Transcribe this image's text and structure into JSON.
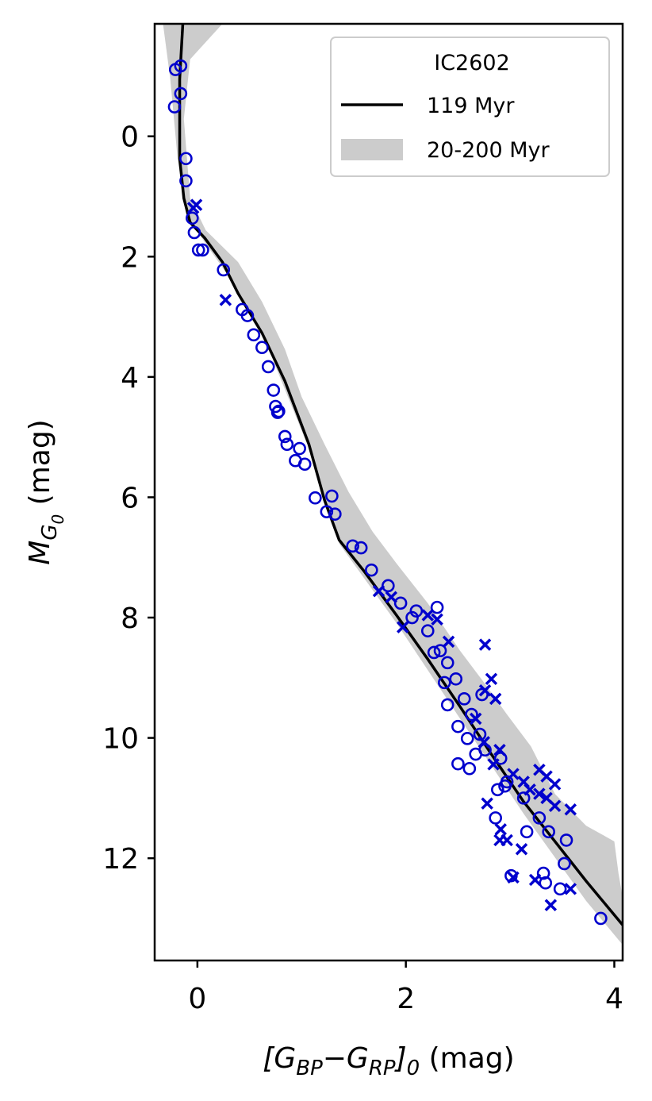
{
  "chart_data": {
    "type": "scatter",
    "xlabel": [
      "[G",
      "BP",
      "−G",
      "RP",
      "]",
      "0",
      " (mag)"
    ],
    "xlabel_levels": [
      0,
      1,
      0,
      1,
      0,
      1,
      0
    ],
    "ylabel": [
      "M",
      "G",
      "0",
      " (mag)"
    ],
    "ylabel_levels": [
      0,
      1,
      2,
      0
    ],
    "xlim": [
      -0.41,
      4.08
    ],
    "ylim": [
      -1.87,
      13.7
    ],
    "y_inverted": true,
    "xticks": [
      0,
      2,
      4
    ],
    "yticks": [
      0,
      2,
      4,
      6,
      8,
      10,
      12
    ],
    "grid": false,
    "legend_title": "IC2602",
    "legend_position": "upper right",
    "band": {
      "name": "20-200 Myr",
      "color": "#cccccc",
      "x": [
        0.24,
        -0.07,
        -0.13,
        -0.07,
        0.08,
        0.39,
        0.62,
        0.84,
        1.0,
        1.22,
        1.45,
        1.68,
        1.91,
        2.21,
        2.52,
        2.75,
        2.97,
        3.2,
        3.43,
        3.73,
        4.0,
        4.04,
        4.08,
        4.08,
        3.73,
        3.13,
        2.52,
        1.91,
        1.36,
        1.07,
        0.62,
        0.31,
        0.07,
        -0.11,
        -0.19,
        -0.26,
        -0.33
      ],
      "y": [
        -1.87,
        -1.28,
        -0.29,
        1.03,
        1.56,
        2.09,
        2.75,
        3.54,
        4.33,
        5.12,
        5.91,
        6.57,
        7.1,
        7.76,
        8.55,
        9.08,
        9.61,
        10.14,
        10.93,
        11.46,
        11.72,
        12.25,
        12.65,
        13.44,
        12.71,
        11.26,
        9.68,
        8.09,
        6.77,
        5.19,
        3.27,
        2.35,
        1.76,
        1.29,
        0.37,
        -0.95,
        -1.87
      ]
    },
    "line": {
      "name": "119 Myr",
      "color": "#000000",
      "x": [
        -0.14,
        -0.17,
        -0.17,
        -0.13,
        -0.07,
        0.07,
        0.24,
        0.39,
        0.62,
        0.84,
        1.07,
        1.22,
        1.36,
        1.6,
        1.91,
        2.21,
        2.52,
        2.82,
        3.13,
        3.43,
        3.73,
        4.08
      ],
      "y": [
        -1.87,
        -0.95,
        0.37,
        1.03,
        1.43,
        1.69,
        2.09,
        2.61,
        3.27,
        4.07,
        5.12,
        6.05,
        6.71,
        7.23,
        7.96,
        8.69,
        9.48,
        10.27,
        11.06,
        11.72,
        12.38,
        13.11
      ]
    },
    "series": [
      {
        "marker": "circle",
        "color": "#0000cd",
        "x": [
          -0.21,
          -0.16,
          -0.22,
          -0.16,
          -0.11,
          -0.11,
          -0.05,
          -0.03,
          0.01,
          0.05,
          0.25,
          0.43,
          0.48,
          0.54,
          0.62,
          0.68,
          0.73,
          0.75,
          0.77,
          0.78,
          0.84,
          0.86,
          0.94,
          0.98,
          1.03,
          1.13,
          1.24,
          1.29,
          1.32,
          1.49,
          1.57,
          1.67,
          1.83,
          1.95,
          2.06,
          2.1,
          2.21,
          2.3,
          2.33,
          2.4,
          2.48,
          2.56,
          2.63,
          2.4,
          2.5,
          2.59,
          2.67,
          2.5,
          2.61,
          2.76,
          2.91,
          2.97,
          2.88,
          3.13,
          3.28,
          3.37,
          3.54,
          3.16,
          2.86,
          3.01,
          3.32,
          3.34,
          3.48,
          3.52,
          3.87,
          2.27,
          2.37,
          2.71,
          2.73,
          2.95
        ],
        "y": [
          -1.11,
          -1.17,
          -0.49,
          -0.71,
          0.37,
          0.74,
          1.36,
          1.6,
          1.89,
          1.89,
          2.22,
          2.88,
          2.98,
          3.3,
          3.51,
          3.83,
          4.22,
          4.49,
          4.59,
          4.57,
          4.99,
          5.12,
          5.39,
          5.19,
          5.45,
          6.01,
          6.24,
          5.98,
          6.28,
          6.81,
          6.84,
          7.21,
          7.47,
          7.76,
          8.0,
          7.89,
          8.22,
          7.83,
          8.55,
          8.75,
          9.02,
          9.35,
          9.61,
          9.45,
          9.81,
          10.01,
          10.27,
          10.43,
          10.51,
          10.2,
          10.34,
          10.73,
          10.86,
          11.0,
          11.33,
          11.56,
          11.7,
          11.56,
          11.33,
          12.29,
          12.25,
          12.41,
          12.51,
          12.09,
          13.0,
          8.58,
          9.08,
          9.94,
          9.28,
          10.8
        ]
      },
      {
        "marker": "x",
        "color": "#0000cd",
        "x": [
          -0.01,
          -0.04,
          0.27,
          1.74,
          1.86,
          1.97,
          2.21,
          2.3,
          2.41,
          2.76,
          2.82,
          2.76,
          2.86,
          2.67,
          2.75,
          2.9,
          2.84,
          3.03,
          3.13,
          3.19,
          3.28,
          3.35,
          3.43,
          3.28,
          3.43,
          3.58,
          2.78,
          2.9,
          2.91,
          2.97,
          3.11,
          3.03,
          3.24,
          3.39,
          3.58,
          3.35
        ],
        "y": [
          1.14,
          1.19,
          2.72,
          7.56,
          7.66,
          8.16,
          7.96,
          8.03,
          8.4,
          8.45,
          9.02,
          9.21,
          9.35,
          9.68,
          10.07,
          10.2,
          10.44,
          10.6,
          10.73,
          10.86,
          10.53,
          10.64,
          10.77,
          10.93,
          11.13,
          11.19,
          11.09,
          11.7,
          11.52,
          11.7,
          11.85,
          12.32,
          12.36,
          12.78,
          12.51,
          11.0
        ]
      }
    ]
  }
}
